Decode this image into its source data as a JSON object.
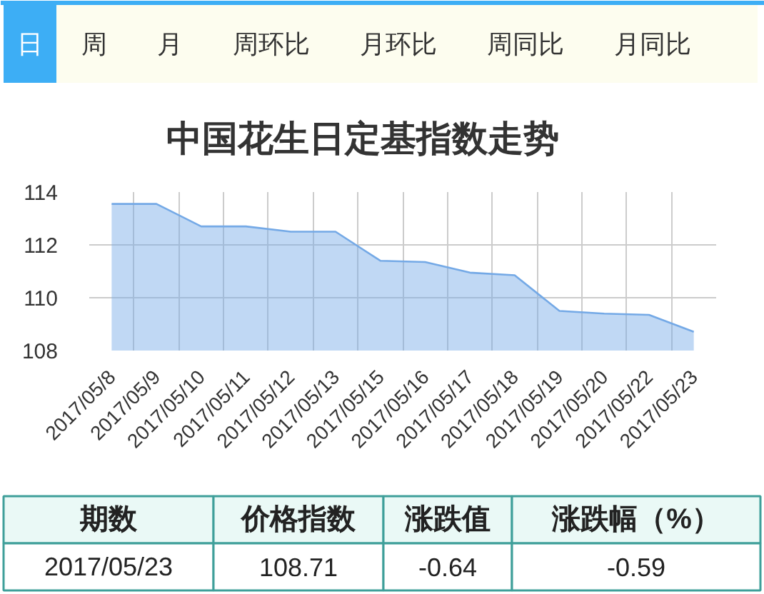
{
  "chart_data": [
    {
      "type": "other",
      "categories": [
        "日",
        "周",
        "月",
        "周环比",
        "月环比",
        "周同比",
        "月同比"
      ],
      "colors": [
        "#3daef5",
        "#fdfdef",
        "#fdfdef",
        "#fdfdef",
        "#fdfdef",
        "#fdfdef",
        "#fdfdef"
      ]
    },
    {
      "type": "area",
      "title": "中国花生日定基指数走势",
      "categories": [
        "2017/05/8",
        "2017/05/9",
        "2017/05/10",
        "2017/05/11",
        "2017/05/12",
        "2017/05/13",
        "2017/05/15",
        "2017/05/16",
        "2017/05/17",
        "2017/05/18",
        "2017/05/19",
        "2017/05/20",
        "2017/05/22",
        "2017/05/23"
      ],
      "values": [
        113.55,
        113.55,
        112.7,
        112.7,
        112.5,
        112.5,
        111.4,
        111.35,
        110.95,
        110.85,
        109.5,
        109.4,
        109.35,
        108.71
      ],
      "color": "#74a9e6",
      "ylim": [
        108,
        114
      ],
      "yticks": [
        108,
        110,
        112,
        114
      ],
      "grid": true
    },
    {
      "type": "other",
      "categories": [
        "期数",
        "价格指数",
        "涨跌值",
        "涨跌幅（%）"
      ],
      "value_labels": [
        "2017/05/23",
        "108.71",
        "-0.64",
        "-0.59"
      ]
    }
  ]
}
